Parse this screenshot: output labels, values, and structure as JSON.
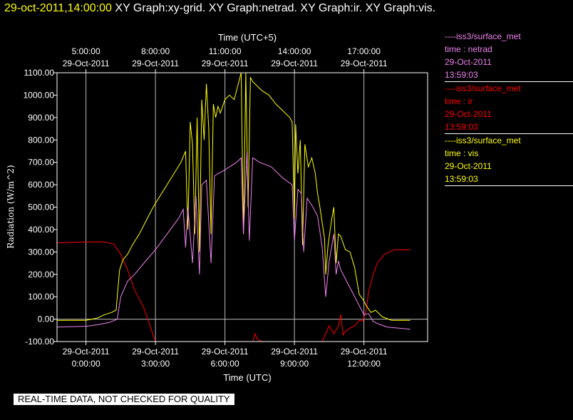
{
  "header": {
    "timestamp": "29-oct-2011,14:00:00",
    "titles": [
      "XY Graph:xy-grid.",
      "XY Graph:netrad.",
      "XY Graph:ir.",
      "XY Graph:vis."
    ]
  },
  "legend": [
    {
      "source": "----iss3/surface_met",
      "var": "time : netrad",
      "date": "29-Oct-2011",
      "time": "13:59:03",
      "color": "#ee82ee"
    },
    {
      "source": "----iss3/surface_met",
      "var": "time : ir",
      "date": "29-Oct-2011",
      "time": "13:59:03",
      "color": "#ff0000"
    },
    {
      "source": "----iss3/surface_met",
      "var": "time : vis",
      "date": "29-Oct-2011",
      "time": "13:59:03",
      "color": "#ffff00"
    }
  ],
  "banner": "REAL-TIME DATA, NOT CHECKED FOR QUALITY",
  "chart_data": {
    "type": "line",
    "ylabel": "Radiation (W/m^2)",
    "xlabel": "Time (UTC)",
    "x2label": "Time (UTC+5)",
    "xlim": [
      -1.25,
      14.75
    ],
    "ylim": [
      -100,
      1100
    ],
    "yticks": [
      -100,
      0,
      100,
      200,
      300,
      400,
      500,
      600,
      700,
      800,
      900,
      1000,
      1100
    ],
    "ytick_labels": [
      "-100.00",
      "0.00",
      "100.00",
      "200.00",
      "300.00",
      "400.00",
      "500.00",
      "600.00",
      "700.00",
      "800.00",
      "900.00",
      "1000.00",
      "1100.00"
    ],
    "xticks_bottom": [
      {
        "x": 0,
        "date": "29-Oct-2011",
        "time": "0:00:00"
      },
      {
        "x": 3,
        "date": "29-Oct-2011",
        "time": "3:00:00"
      },
      {
        "x": 6,
        "date": "29-Oct-2011",
        "time": "6:00:00"
      },
      {
        "x": 9,
        "date": "29-Oct-2011",
        "time": "9:00:00"
      },
      {
        "x": 12,
        "date": "29-Oct-2011",
        "time": "12:00:00"
      }
    ],
    "xticks_top": [
      {
        "x": 0,
        "date": "29-Oct-2011",
        "time": "5:00:00"
      },
      {
        "x": 3,
        "date": "29-Oct-2011",
        "time": "8:00:00"
      },
      {
        "x": 6,
        "date": "29-Oct-2011",
        "time": "11:00:00"
      },
      {
        "x": 9,
        "date": "29-Oct-2011",
        "time": "14:00:00"
      },
      {
        "x": 12,
        "date": "29-Oct-2011",
        "time": "17:00:00"
      }
    ],
    "grid": true,
    "series": [
      {
        "name": "ir",
        "color": "#ff0000",
        "segments": [
          [
            [
              -1.25,
              340
            ],
            [
              0,
              345
            ],
            [
              0.8,
              345
            ],
            [
              1.2,
              335
            ],
            [
              1.5,
              290
            ],
            [
              1.8,
              220
            ],
            [
              2.1,
              130
            ],
            [
              2.5,
              50
            ],
            [
              2.8,
              -40
            ],
            [
              3.0,
              -100
            ]
          ],
          [
            [
              7.2,
              -100
            ],
            [
              7.3,
              -65
            ],
            [
              7.4,
              -90
            ],
            [
              7.6,
              -100
            ]
          ],
          [
            [
              10.2,
              -100
            ],
            [
              10.5,
              -30
            ],
            [
              10.7,
              -65
            ],
            [
              10.9,
              -30
            ],
            [
              11.0,
              20
            ],
            [
              11.1,
              -70
            ],
            [
              11.2,
              -55
            ],
            [
              11.4,
              -40
            ],
            [
              11.6,
              -30
            ],
            [
              11.8,
              -5
            ],
            [
              11.95,
              -10
            ],
            [
              12.1,
              40
            ],
            [
              12.2,
              120
            ],
            [
              12.4,
              200
            ],
            [
              12.6,
              255
            ],
            [
              12.9,
              290
            ],
            [
              13.3,
              310
            ],
            [
              13.6,
              310
            ],
            [
              14.0,
              310
            ]
          ]
        ]
      },
      {
        "name": "vis",
        "color": "#ffff00",
        "segments": [
          [
            [
              -1.25,
              -5
            ],
            [
              0,
              -5
            ],
            [
              0.5,
              5
            ],
            [
              0.8,
              20
            ],
            [
              1.1,
              30
            ],
            [
              1.3,
              40
            ],
            [
              1.35,
              100
            ],
            [
              1.45,
              220
            ],
            [
              1.6,
              265
            ],
            [
              1.8,
              290
            ],
            [
              2.0,
              330
            ],
            [
              2.3,
              380
            ],
            [
              2.6,
              440
            ],
            [
              2.9,
              500
            ],
            [
              3.2,
              550
            ],
            [
              3.5,
              600
            ],
            [
              3.8,
              650
            ],
            [
              4.1,
              700
            ],
            [
              4.3,
              750
            ],
            [
              4.4,
              400
            ],
            [
              4.5,
              880
            ],
            [
              4.6,
              780
            ],
            [
              4.7,
              380
            ],
            [
              4.8,
              900
            ],
            [
              4.9,
              300
            ],
            [
              5.0,
              980
            ],
            [
              5.1,
              800
            ],
            [
              5.2,
              1050
            ],
            [
              5.3,
              850
            ],
            [
              5.4,
              380
            ],
            [
              5.5,
              960
            ],
            [
              5.6,
              900
            ],
            [
              5.7,
              950
            ],
            [
              5.8,
              920
            ],
            [
              6.0,
              980
            ],
            [
              6.2,
              1000
            ],
            [
              6.4,
              980
            ],
            [
              6.6,
              1060
            ],
            [
              6.7,
              1100
            ],
            [
              6.8,
              380
            ],
            [
              6.9,
              1100
            ],
            [
              7.0,
              500
            ],
            [
              7.1,
              1080
            ],
            [
              7.2,
              1060
            ],
            [
              7.3,
              1050
            ],
            [
              7.6,
              1020
            ],
            [
              7.9,
              1000
            ],
            [
              8.2,
              960
            ],
            [
              8.5,
              930
            ],
            [
              8.8,
              900
            ],
            [
              8.9,
              880
            ],
            [
              9.0,
              450
            ],
            [
              9.05,
              870
            ],
            [
              9.15,
              650
            ],
            [
              9.25,
              800
            ],
            [
              9.35,
              330
            ],
            [
              9.45,
              780
            ],
            [
              9.6,
              680
            ],
            [
              9.75,
              720
            ],
            [
              9.9,
              650
            ],
            [
              10.0,
              560
            ],
            [
              10.1,
              500
            ],
            [
              10.3,
              360
            ],
            [
              10.35,
              200
            ],
            [
              10.45,
              330
            ],
            [
              10.6,
              440
            ],
            [
              10.7,
              500
            ],
            [
              10.8,
              250
            ],
            [
              10.9,
              380
            ],
            [
              11.0,
              370
            ],
            [
              11.2,
              310
            ],
            [
              11.4,
              300
            ],
            [
              11.6,
              230
            ],
            [
              11.8,
              110
            ],
            [
              11.95,
              90
            ],
            [
              12.1,
              60
            ],
            [
              12.3,
              30
            ],
            [
              12.5,
              40
            ],
            [
              12.8,
              10
            ],
            [
              13.2,
              -5
            ],
            [
              14.0,
              -5
            ]
          ]
        ]
      },
      {
        "name": "netrad",
        "color": "#ee82ee",
        "segments": [
          [
            [
              -1.25,
              -35
            ],
            [
              0,
              -32
            ],
            [
              0.5,
              -25
            ],
            [
              1.0,
              -15
            ],
            [
              1.35,
              0
            ],
            [
              1.5,
              100
            ],
            [
              1.8,
              170
            ],
            [
              2.1,
              200
            ],
            [
              2.5,
              250
            ],
            [
              3.0,
              310
            ],
            [
              3.5,
              380
            ],
            [
              4.0,
              450
            ],
            [
              4.2,
              490
            ],
            [
              4.3,
              320
            ],
            [
              4.4,
              500
            ],
            [
              4.6,
              250
            ],
            [
              4.75,
              550
            ],
            [
              4.9,
              200
            ],
            [
              5.0,
              600
            ],
            [
              5.2,
              620
            ],
            [
              5.4,
              250
            ],
            [
              5.55,
              640
            ],
            [
              5.7,
              650
            ],
            [
              5.9,
              660
            ],
            [
              6.2,
              680
            ],
            [
              6.5,
              700
            ],
            [
              6.7,
              720
            ],
            [
              6.8,
              380
            ],
            [
              6.95,
              750
            ],
            [
              7.05,
              350
            ],
            [
              7.2,
              720
            ],
            [
              7.5,
              700
            ],
            [
              8.0,
              680
            ],
            [
              8.5,
              630
            ],
            [
              8.9,
              600
            ],
            [
              9.0,
              350
            ],
            [
              9.15,
              580
            ],
            [
              9.3,
              560
            ],
            [
              9.4,
              300
            ],
            [
              9.55,
              540
            ],
            [
              9.8,
              500
            ],
            [
              10.0,
              460
            ],
            [
              10.1,
              390
            ],
            [
              10.2,
              320
            ],
            [
              10.35,
              100
            ],
            [
              10.5,
              260
            ],
            [
              10.7,
              380
            ],
            [
              10.8,
              200
            ],
            [
              10.9,
              260
            ],
            [
              11.0,
              220
            ],
            [
              11.2,
              180
            ],
            [
              11.5,
              120
            ],
            [
              11.8,
              60
            ],
            [
              12.0,
              20
            ],
            [
              12.2,
              25
            ],
            [
              12.4,
              -10
            ],
            [
              12.6,
              -20
            ],
            [
              13.0,
              -35
            ],
            [
              14.0,
              -45
            ]
          ]
        ]
      }
    ]
  }
}
